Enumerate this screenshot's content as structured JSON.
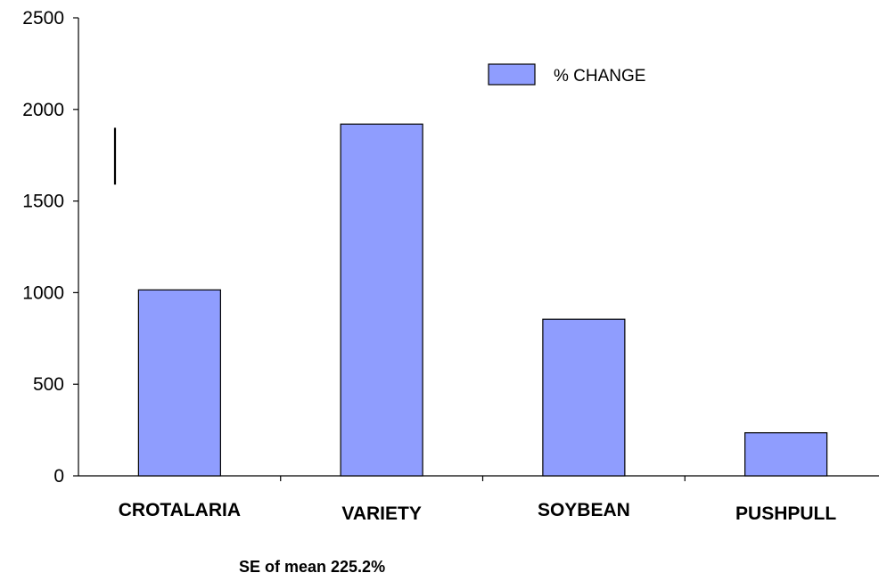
{
  "chart_data": {
    "type": "bar",
    "categories": [
      "CROTALARIA",
      "VARIETY",
      "SOYBEAN",
      "PUSHPULL"
    ],
    "series": [
      {
        "name": "% CHANGE",
        "values": [
          1015,
          1920,
          855,
          235
        ],
        "color": "#8f9dfe"
      }
    ],
    "ylim": [
      0,
      2500
    ],
    "yticks": [
      "0",
      "500",
      "1000",
      "1500",
      "2000",
      "2500"
    ],
    "error_bar": {
      "range": [
        1590,
        1900
      ]
    },
    "legend_position": "top-right",
    "grid": false,
    "note": "SE of mean 225.2%"
  }
}
